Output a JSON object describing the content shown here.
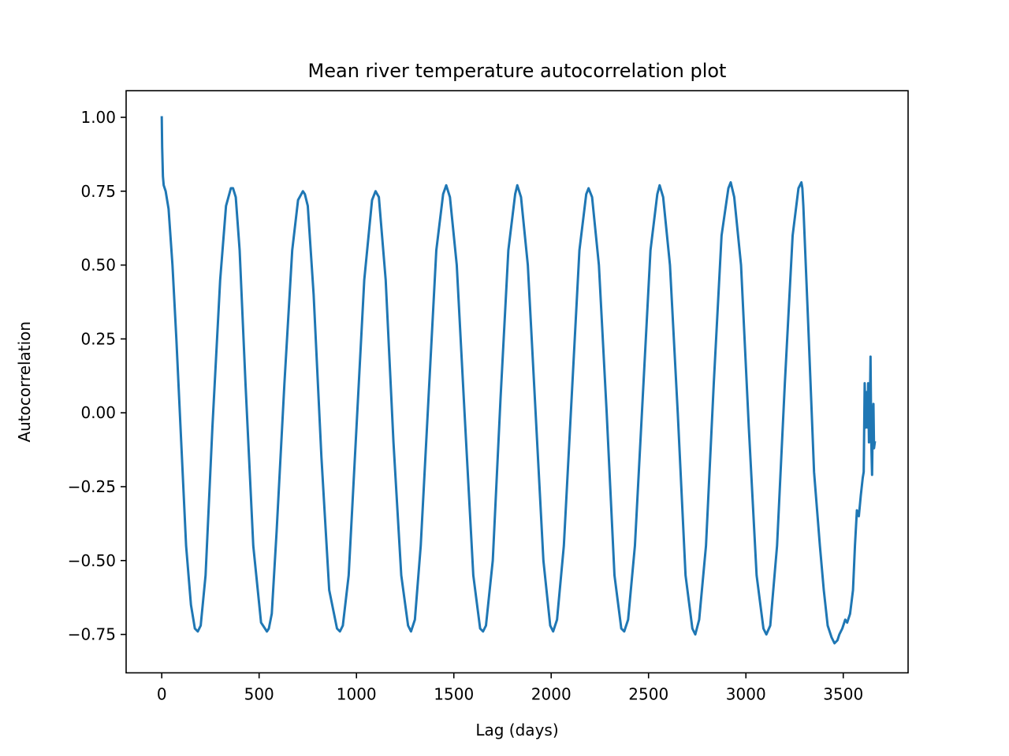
{
  "chart_data": {
    "type": "line",
    "title": "Mean river temperature autocorrelation plot",
    "xlabel": "Lag (days)",
    "ylabel": "Autocorrelation",
    "xlim": [
      -183,
      3833
    ],
    "ylim": [
      -0.88,
      1.09
    ],
    "x_ticks": [
      0,
      500,
      1000,
      1500,
      2000,
      2500,
      3000,
      3500
    ],
    "x_tick_labels": [
      "0",
      "500",
      "1000",
      "1500",
      "2000",
      "2500",
      "3000",
      "3500"
    ],
    "y_ticks": [
      1.0,
      0.75,
      0.5,
      0.25,
      0.0,
      -0.25,
      -0.5,
      -0.75
    ],
    "y_tick_labels": [
      "1.00",
      "0.75",
      "0.50",
      "0.25",
      "0.00",
      "−0.25",
      "−0.50",
      "−0.75"
    ],
    "grid": false,
    "series": [
      {
        "color": "#1f77b4",
        "x": [
          0,
          2,
          6,
          10,
          20,
          35,
          55,
          75,
          100,
          125,
          150,
          170,
          185,
          200,
          225,
          260,
          300,
          330,
          355,
          366,
          380,
          400,
          430,
          470,
          510,
          540,
          550,
          565,
          590,
          630,
          670,
          700,
          725,
          735,
          750,
          780,
          820,
          860,
          900,
          915,
          930,
          960,
          1000,
          1040,
          1080,
          1098,
          1115,
          1150,
          1190,
          1230,
          1265,
          1280,
          1300,
          1330,
          1370,
          1410,
          1445,
          1461,
          1480,
          1515,
          1555,
          1600,
          1635,
          1650,
          1665,
          1700,
          1740,
          1780,
          1815,
          1826,
          1845,
          1880,
          1920,
          1960,
          1995,
          2010,
          2030,
          2065,
          2105,
          2145,
          2180,
          2192,
          2210,
          2245,
          2285,
          2325,
          2360,
          2375,
          2395,
          2430,
          2470,
          2510,
          2545,
          2557,
          2575,
          2610,
          2650,
          2690,
          2725,
          2740,
          2760,
          2795,
          2835,
          2875,
          2910,
          2922,
          2940,
          2975,
          3015,
          3055,
          3090,
          3105,
          3125,
          3160,
          3200,
          3240,
          3270,
          3285,
          3290,
          3295,
          3320,
          3350,
          3380,
          3400,
          3420,
          3440,
          3455,
          3470,
          3480,
          3495,
          3510,
          3520,
          3535,
          3550,
          3560,
          3570,
          3580,
          3590,
          3600,
          3605,
          3610,
          3615,
          3620,
          3625,
          3628,
          3632,
          3636,
          3640,
          3644,
          3648,
          3652,
          3655,
          3658,
          3662
        ],
        "y": [
          1.0,
          0.9,
          0.8,
          0.77,
          0.75,
          0.69,
          0.5,
          0.25,
          -0.1,
          -0.45,
          -0.65,
          -0.73,
          -0.74,
          -0.72,
          -0.55,
          -0.05,
          0.45,
          0.7,
          0.76,
          0.76,
          0.73,
          0.55,
          0.1,
          -0.45,
          -0.71,
          -0.74,
          -0.73,
          -0.68,
          -0.4,
          0.1,
          0.55,
          0.72,
          0.75,
          0.74,
          0.7,
          0.4,
          -0.15,
          -0.6,
          -0.73,
          -0.74,
          -0.72,
          -0.55,
          -0.05,
          0.45,
          0.72,
          0.75,
          0.73,
          0.45,
          -0.1,
          -0.55,
          -0.72,
          -0.74,
          -0.7,
          -0.45,
          0.05,
          0.55,
          0.74,
          0.77,
          0.73,
          0.5,
          0.0,
          -0.55,
          -0.73,
          -0.74,
          -0.72,
          -0.5,
          0.05,
          0.55,
          0.74,
          0.77,
          0.73,
          0.5,
          0.0,
          -0.5,
          -0.72,
          -0.74,
          -0.7,
          -0.45,
          0.05,
          0.55,
          0.74,
          0.76,
          0.73,
          0.5,
          0.0,
          -0.55,
          -0.73,
          -0.74,
          -0.7,
          -0.45,
          0.05,
          0.55,
          0.74,
          0.77,
          0.73,
          0.5,
          0.0,
          -0.55,
          -0.73,
          -0.75,
          -0.7,
          -0.45,
          0.1,
          0.6,
          0.76,
          0.78,
          0.73,
          0.5,
          -0.05,
          -0.55,
          -0.73,
          -0.75,
          -0.72,
          -0.45,
          0.1,
          0.6,
          0.76,
          0.78,
          0.76,
          0.7,
          0.3,
          -0.2,
          -0.45,
          -0.6,
          -0.72,
          -0.76,
          -0.78,
          -0.77,
          -0.75,
          -0.73,
          -0.7,
          -0.71,
          -0.68,
          -0.6,
          -0.45,
          -0.33,
          -0.35,
          -0.28,
          -0.22,
          -0.2,
          0.1,
          -0.05,
          0.07,
          -0.05,
          0.1,
          -0.1,
          -0.02,
          0.19,
          -0.1,
          -0.21,
          0.0,
          0.03,
          -0.12,
          -0.1
        ]
      }
    ]
  }
}
